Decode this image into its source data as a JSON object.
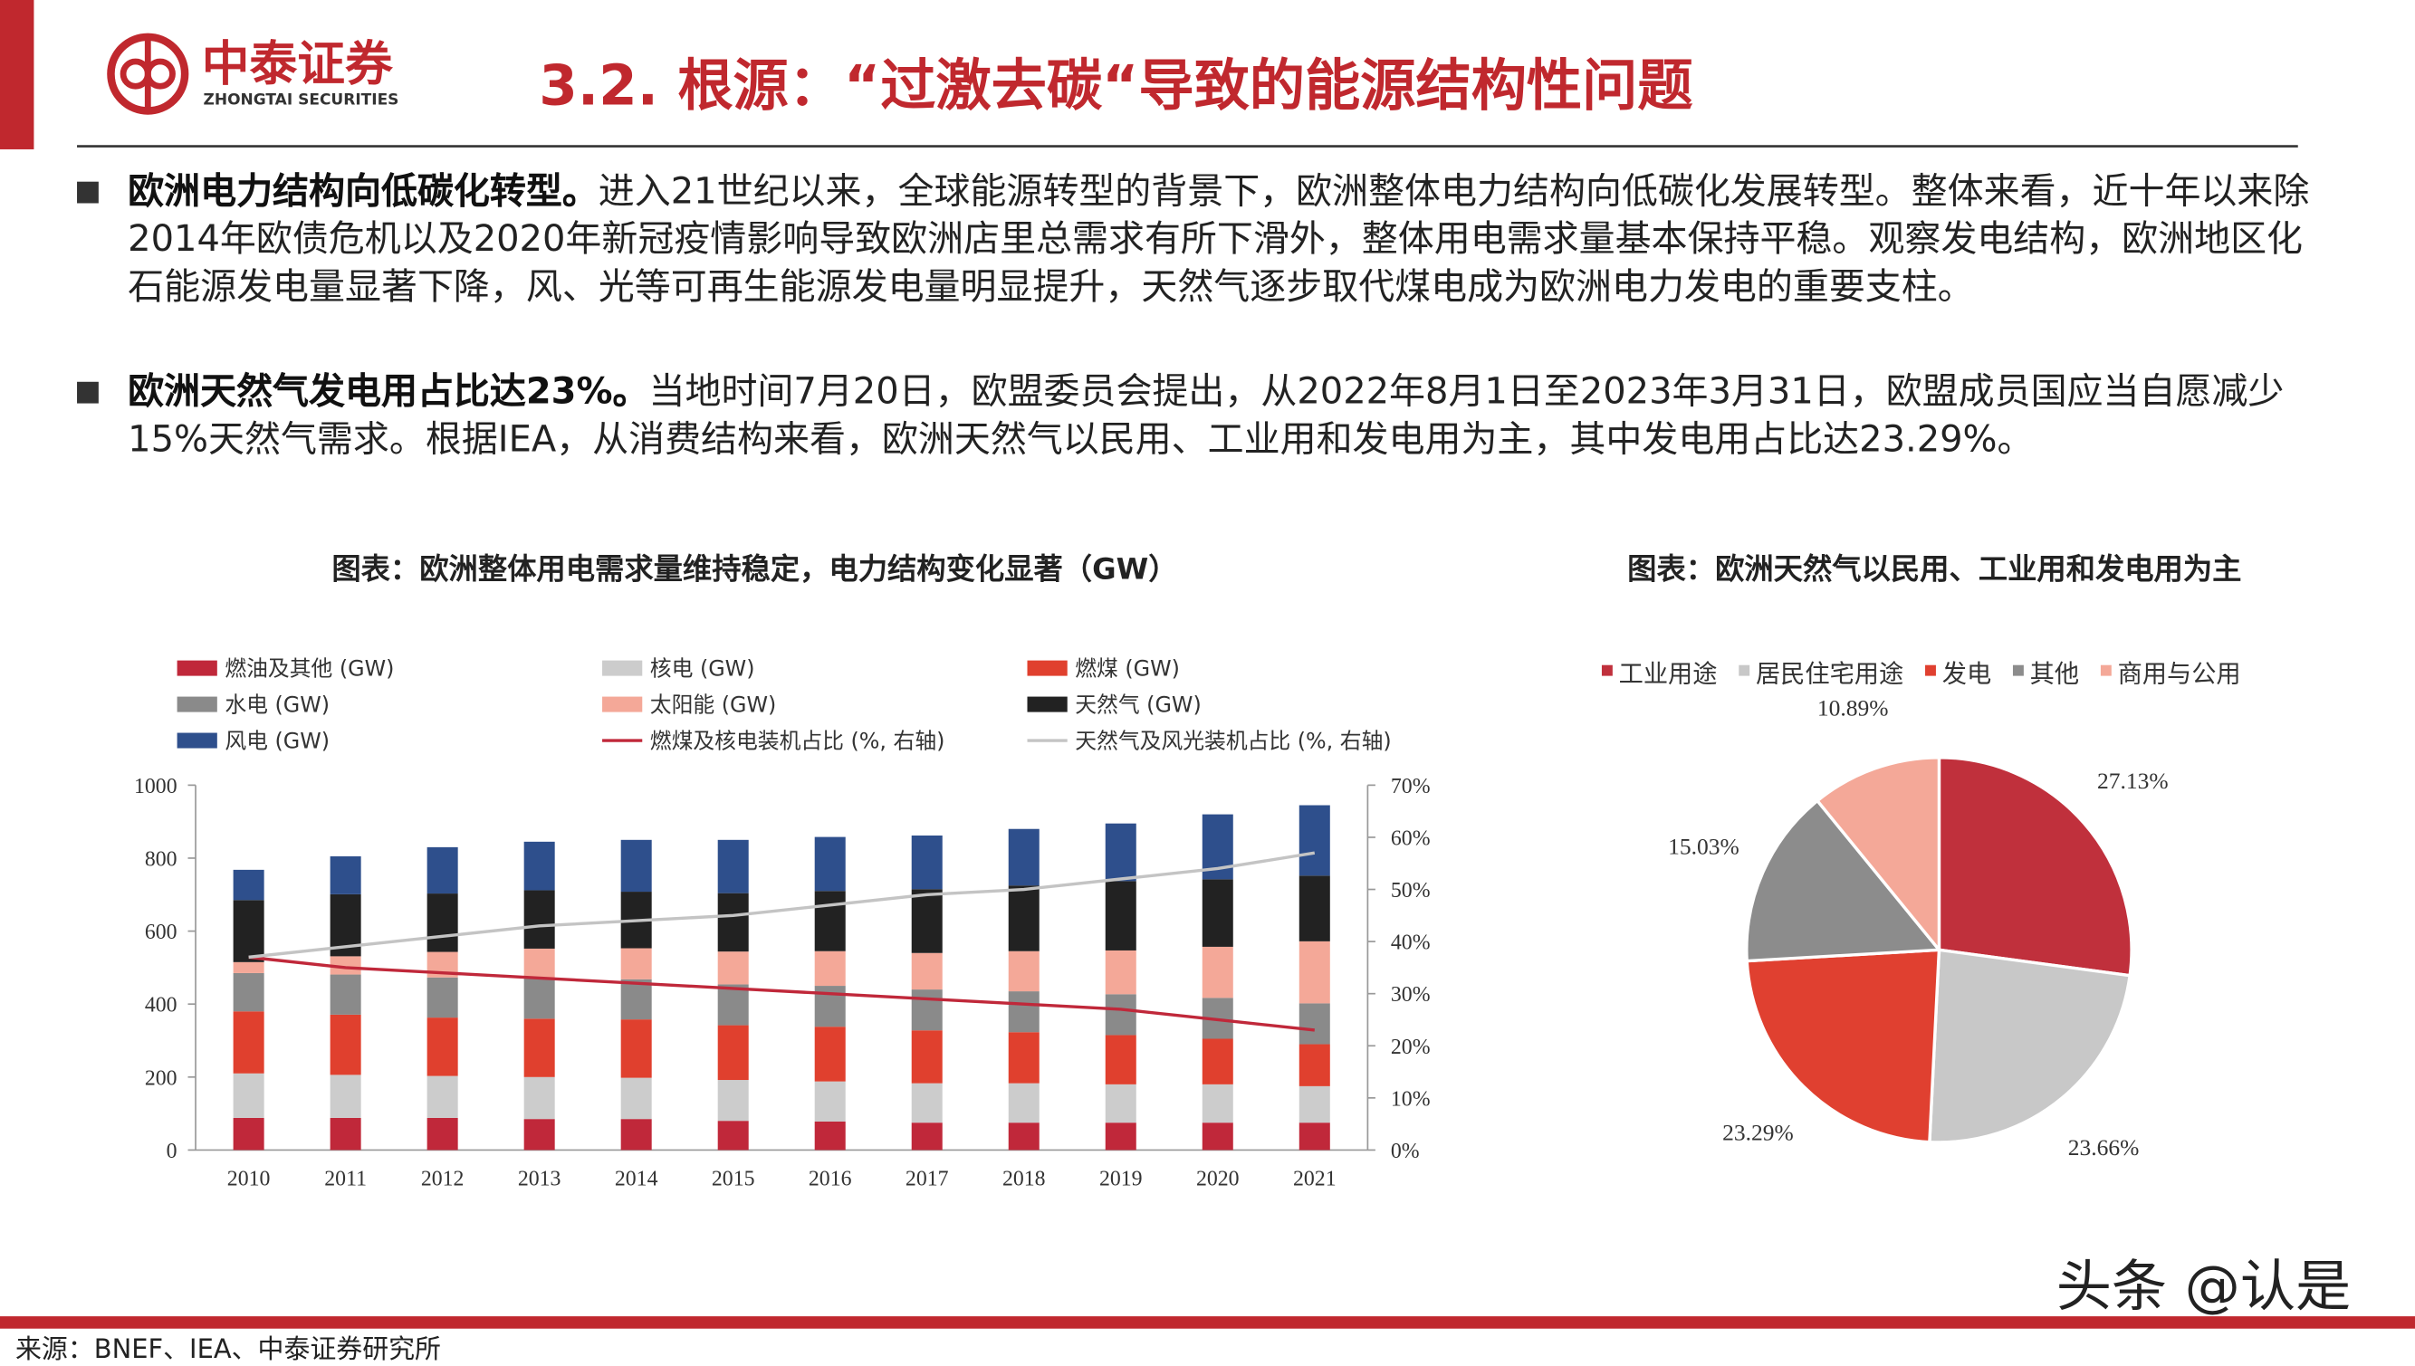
{
  "header": {
    "logo_cn": "中泰证券",
    "logo_en": "ZHONGTAI SECURITIES",
    "title": "3.2. 根源：“过激去碳“导致的能源结构性问题"
  },
  "bullets": [
    {
      "lead": "欧洲电力结构向低碳化转型。",
      "text": "进入21世纪以来，全球能源转型的背景下，欧洲整体电力结构向低碳化发展转型。整体来看，近十年以来除2014年欧债危机以及2020年新冠疫情影响导致欧洲店里总需求有所下滑外，整体用电需求量基本保持平稳。观察发电结构，欧洲地区化石能源发电量显著下降，风、光等可再生能源发电量明显提升，天然气逐步取代煤电成为欧洲电力发电的重要支柱。"
    },
    {
      "lead": "欧洲天然气发电用占比达23%。",
      "text": "当地时间7月20日，欧盟委员会提出，从2022年8月1日至2023年3月31日，欧盟成员国应当自愿减少15%天然气需求。根据IEA，从消费结构来看，欧洲天然气以民用、工业用和发电用为主，其中发电用占比达23.29%。"
    }
  ],
  "chart_data": [
    {
      "type": "bar",
      "stacked": true,
      "title": "图表：欧洲整体用电需求量维持稳定，电力结构变化显著（GW）",
      "categories": [
        "2010",
        "2011",
        "2012",
        "2013",
        "2014",
        "2015",
        "2016",
        "2017",
        "2018",
        "2019",
        "2020",
        "2021"
      ],
      "ylim": [
        0,
        1000
      ],
      "yticks": [
        0,
        200,
        400,
        600,
        800,
        1000
      ],
      "y2lim": [
        0,
        70
      ],
      "y2ticks": [
        {
          "value": 0,
          "label": "0%"
        },
        {
          "value": 10,
          "label": "10%"
        },
        {
          "value": 20,
          "label": "20%"
        },
        {
          "value": 30,
          "label": "30%"
        },
        {
          "value": 40,
          "label": "40%"
        },
        {
          "value": 50,
          "label": "50%"
        },
        {
          "value": 60,
          "label": "60%"
        },
        {
          "value": 70,
          "label": "70%"
        }
      ],
      "series": [
        {
          "name": "燃油及其他 (GW)",
          "color": "#c0283a",
          "values": [
            88,
            88,
            88,
            85,
            85,
            80,
            78,
            75,
            75,
            75,
            75,
            75
          ]
        },
        {
          "name": "核电 (GW)",
          "color": "#cccccc",
          "values": [
            122,
            118,
            115,
            115,
            113,
            112,
            110,
            108,
            108,
            105,
            105,
            100
          ]
        },
        {
          "name": "燃煤 (GW)",
          "color": "#e0402e",
          "values": [
            170,
            165,
            160,
            160,
            160,
            150,
            150,
            145,
            140,
            135,
            125,
            115
          ]
        },
        {
          "name": "水电 (GW)",
          "color": "#8a8a8a",
          "values": [
            105,
            110,
            110,
            112,
            110,
            112,
            112,
            112,
            112,
            112,
            112,
            112
          ]
        },
        {
          "name": "太阳能 (GW)",
          "color": "#f4a898",
          "values": [
            30,
            50,
            70,
            80,
            85,
            90,
            95,
            100,
            110,
            120,
            140,
            170
          ]
        },
        {
          "name": "天然气 (GW)",
          "color": "#222222",
          "values": [
            170,
            170,
            160,
            160,
            155,
            160,
            165,
            175,
            180,
            190,
            185,
            180
          ]
        },
        {
          "name": "风电 (GW)",
          "color": "#2e4f8c",
          "values": [
            83,
            104,
            127,
            133,
            142,
            146,
            148,
            147,
            155,
            158,
            178,
            193
          ]
        },
        {
          "name": "燃煤及核电装机占比 (%, 右轴)",
          "type": "line",
          "axis": "y2",
          "color": "#c0283a",
          "values": [
            37,
            35,
            34,
            33,
            32,
            31,
            30,
            29,
            28,
            27,
            25,
            23
          ]
        },
        {
          "name": "天然气及风光装机占比 (%, 右轴)",
          "type": "line",
          "axis": "y2",
          "color": "#c4c4c4",
          "values": [
            37,
            39,
            41,
            43,
            44,
            45,
            47,
            49,
            50,
            52,
            54,
            57
          ]
        }
      ]
    },
    {
      "type": "pie",
      "title": "图表：欧洲天然气以民用、工业用和发电用为主",
      "categories": [
        "工业用途",
        "居民住宅用途",
        "发电",
        "其他",
        "商用与公用"
      ],
      "values": [
        27.13,
        23.66,
        23.29,
        15.03,
        10.89
      ],
      "value_labels": [
        "27.13%",
        "23.66%",
        "23.29%",
        "15.03%",
        "10.89%"
      ],
      "colors": [
        "#c0303c",
        "#c8c8c8",
        "#e04030",
        "#8c8c8c",
        "#f4a898"
      ]
    }
  ],
  "source": "来源：BNEF、IEA、中泰证券研究所",
  "watermark": "头条 @认是"
}
